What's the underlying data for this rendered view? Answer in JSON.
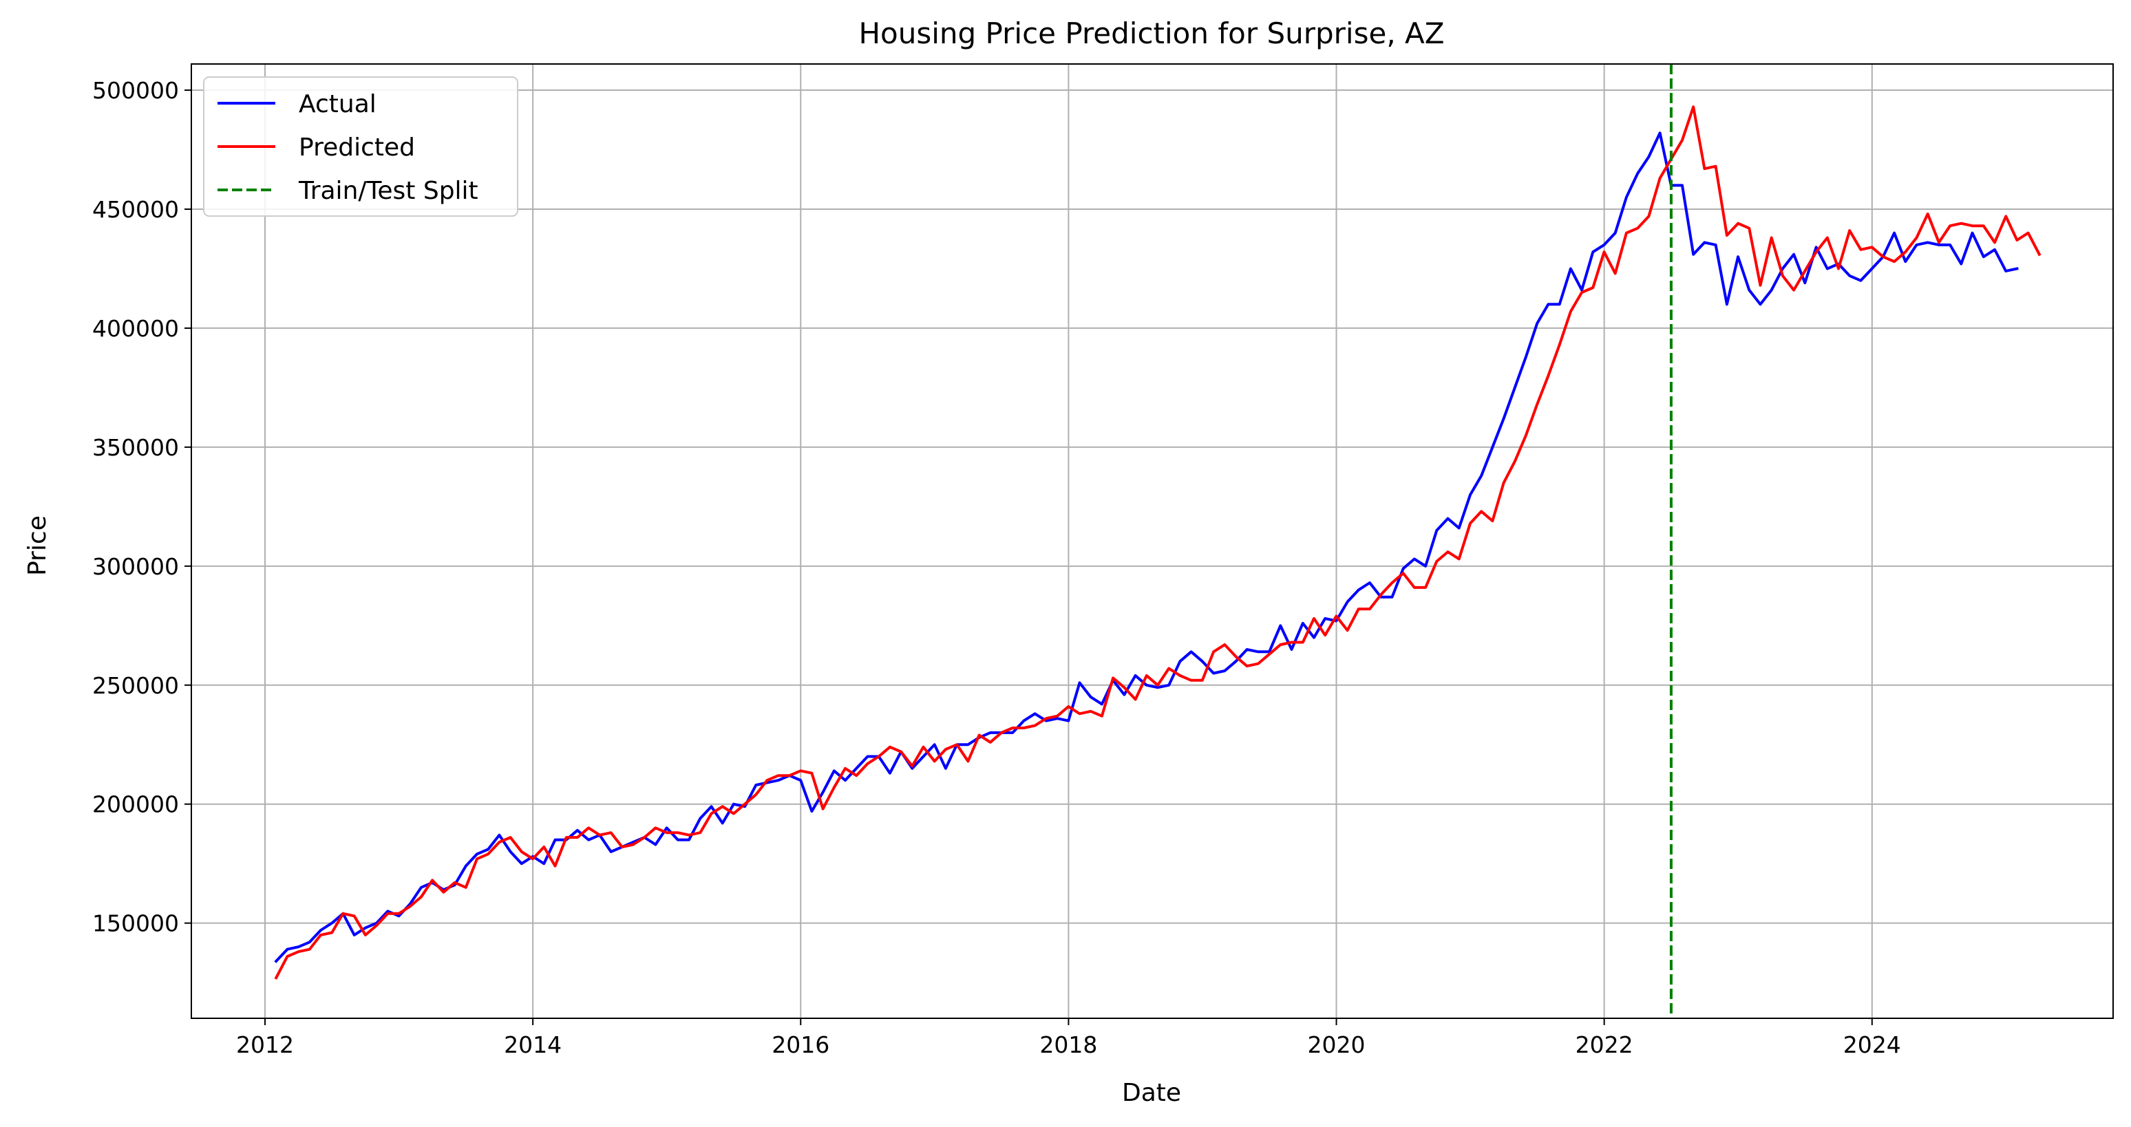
{
  "chart_data": {
    "type": "line",
    "title": "Housing Price Prediction for Surprise, AZ",
    "xlabel": "Date",
    "ylabel": "Price",
    "xlim": [
      2011.45,
      2025.8
    ],
    "ylim": [
      110000,
      511000
    ],
    "x_ticks": [
      2012,
      2014,
      2016,
      2018,
      2020,
      2022,
      2024
    ],
    "y_ticks": [
      150000,
      200000,
      250000,
      300000,
      350000,
      400000,
      450000,
      500000
    ],
    "grid": true,
    "legend_position": "top-left",
    "split_x": 2022.5,
    "split_label": "Train/Test Split",
    "series": [
      {
        "name": "Actual",
        "color": "#0000ff",
        "style": "solid",
        "x_start": 2012.083,
        "x_step": 0.08333,
        "values": [
          134000,
          139000,
          140000,
          142000,
          147000,
          150000,
          154000,
          145000,
          148000,
          150000,
          155000,
          153000,
          158000,
          165000,
          167000,
          164000,
          166000,
          174000,
          179000,
          181000,
          187000,
          180000,
          175000,
          178000,
          175000,
          185000,
          185000,
          189000,
          185000,
          187000,
          180000,
          182000,
          184000,
          186000,
          183000,
          190000,
          185000,
          185000,
          194000,
          199000,
          192000,
          200000,
          199000,
          208000,
          209000,
          210000,
          212000,
          210000,
          197000,
          205000,
          214000,
          210000,
          215000,
          220000,
          220000,
          213000,
          222000,
          215000,
          220000,
          225000,
          215000,
          225000,
          225000,
          228000,
          230000,
          230000,
          230000,
          235000,
          238000,
          235000,
          236000,
          235000,
          251000,
          245000,
          242000,
          252000,
          246000,
          254000,
          250000,
          249000,
          250000,
          260000,
          264000,
          260000,
          255000,
          256000,
          260000,
          265000,
          264000,
          264000,
          275000,
          265000,
          276000,
          270000,
          278000,
          277000,
          285000,
          290000,
          293000,
          287000,
          287000,
          299000,
          303000,
          300000,
          315000,
          320000,
          316000,
          330000,
          338000,
          350000,
          362000,
          375000,
          388000,
          402000,
          410000,
          410000,
          425000,
          416000,
          432000,
          435000,
          440000,
          455000,
          465000,
          472000,
          482000,
          460000,
          460000,
          431000,
          436000,
          435000,
          410000,
          430000,
          416000,
          410000,
          416000,
          425000,
          431000,
          419000,
          434000,
          425000,
          427000,
          422000,
          420000,
          425000,
          430000,
          440000,
          428000,
          435000,
          436000,
          435000,
          435000,
          427000,
          440000,
          430000,
          433000,
          424000,
          425000
        ]
      },
      {
        "name": "Predicted",
        "color": "#ff0000",
        "style": "solid",
        "x_start": 2012.083,
        "x_step": 0.08333,
        "values": [
          127000,
          136000,
          138000,
          139000,
          145000,
          146000,
          154000,
          153000,
          145000,
          149000,
          154000,
          154000,
          157000,
          161000,
          168000,
          163000,
          167000,
          165000,
          177000,
          179000,
          184000,
          186000,
          180000,
          177000,
          182000,
          174000,
          186000,
          186000,
          190000,
          187000,
          188000,
          182000,
          183000,
          186000,
          190000,
          188000,
          188000,
          187000,
          188000,
          196000,
          199000,
          196000,
          200000,
          204000,
          210000,
          212000,
          212000,
          214000,
          213000,
          198000,
          207000,
          215000,
          212000,
          217000,
          220000,
          224000,
          222000,
          216000,
          224000,
          218000,
          223000,
          225000,
          218000,
          229000,
          226000,
          230000,
          232000,
          232000,
          233000,
          236000,
          237000,
          241000,
          238000,
          239000,
          237000,
          253000,
          249000,
          244000,
          254000,
          250000,
          257000,
          254000,
          252000,
          252000,
          264000,
          267000,
          262000,
          258000,
          259000,
          263000,
          267000,
          268000,
          268000,
          278000,
          271000,
          279000,
          273000,
          282000,
          282000,
          288000,
          293000,
          297000,
          291000,
          291000,
          302000,
          306000,
          303000,
          318000,
          323000,
          319000,
          335000,
          344000,
          355000,
          368000,
          380000,
          393000,
          407000,
          415000,
          417000,
          432000,
          423000,
          440000,
          442000,
          447000,
          463000,
          471000,
          479000,
          493000,
          467000,
          468000,
          439000,
          444000,
          442000,
          418000,
          438000,
          422000,
          416000,
          424000,
          432000,
          438000,
          425000,
          441000,
          433000,
          434000,
          430000,
          428000,
          432000,
          438000,
          448000,
          436000,
          443000,
          444000,
          443000,
          443000,
          436000,
          447000,
          437000,
          440000,
          431000
        ]
      }
    ]
  }
}
